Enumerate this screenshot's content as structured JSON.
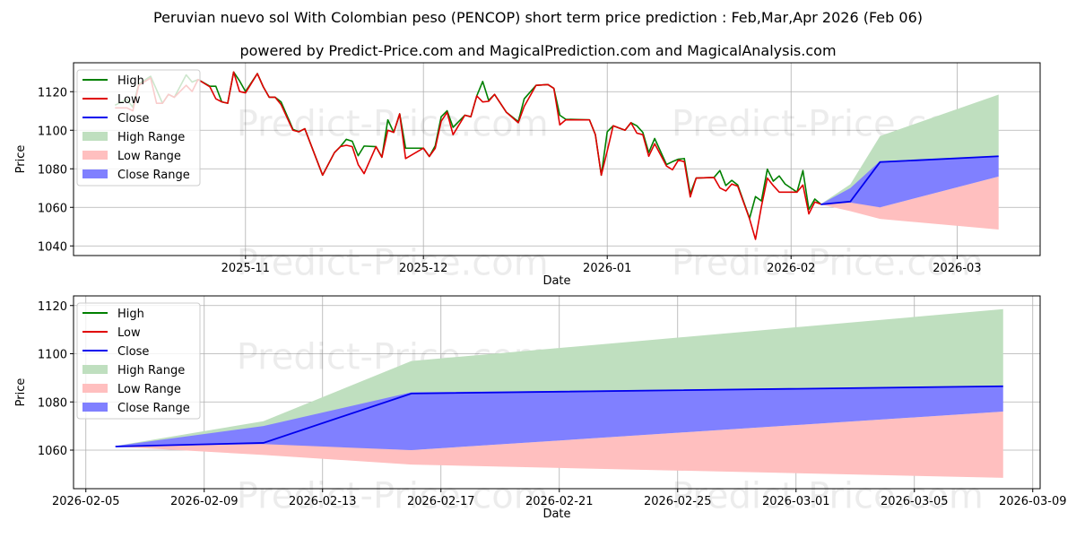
{
  "title": "Peruvian nuevo sol With Colombian peso (PENCOP) short term price prediction : Feb,Mar,Apr 2026 (Feb 06)",
  "subtitle": "powered by Predict-Price.com and MagicalPrediction.com and MagicalAnalysis.com",
  "watermark": "Predict-Price.com",
  "colors": {
    "high": "#008000",
    "low": "#e00000",
    "close": "#0000ee",
    "high_range": "#bfdfbf",
    "low_range": "#ffbfbf",
    "close_range": "#8080ff"
  },
  "chart_data": [
    {
      "type": "line",
      "xlabel": "Date",
      "ylabel": "Price",
      "xlim": [
        "2025-10-03",
        "2026-03-15"
      ],
      "ylim": [
        1035,
        1135
      ],
      "grid": true,
      "legend_position": "top-left",
      "legend": [
        "High",
        "Low",
        "Close",
        "High Range",
        "Low Range",
        "Close Range"
      ],
      "x_ticks": [
        {
          "date": "2025-11-01",
          "label": "2025-11"
        },
        {
          "date": "2025-12-01",
          "label": "2025-12"
        },
        {
          "date": "2026-01-01",
          "label": "2026-01"
        },
        {
          "date": "2026-02-01",
          "label": "2026-02"
        },
        {
          "date": "2026-03-01",
          "label": "2026-03"
        }
      ],
      "y_ticks": [
        1040,
        1060,
        1080,
        1100,
        1120
      ],
      "history": {
        "dates": [
          "2025-10-10",
          "2025-10-12",
          "2025-10-13",
          "2025-10-14",
          "2025-10-16",
          "2025-10-17",
          "2025-10-18",
          "2025-10-19",
          "2025-10-20",
          "2025-10-22",
          "2025-10-23",
          "2025-10-24",
          "2025-10-26",
          "2025-10-27",
          "2025-10-28",
          "2025-10-29",
          "2025-10-30",
          "2025-10-31",
          "2025-11-01",
          "2025-11-03",
          "2025-11-04",
          "2025-11-05",
          "2025-11-06",
          "2025-11-07",
          "2025-11-09",
          "2025-11-10",
          "2025-11-11",
          "2025-11-14",
          "2025-11-16",
          "2025-11-17",
          "2025-11-18",
          "2025-11-19",
          "2025-11-20",
          "2025-11-21",
          "2025-11-23",
          "2025-11-24",
          "2025-11-25",
          "2025-11-26",
          "2025-11-27",
          "2025-11-28",
          "2025-12-01",
          "2025-12-02",
          "2025-12-03",
          "2025-12-04",
          "2025-12-05",
          "2025-12-06",
          "2025-12-08",
          "2025-12-09",
          "2025-12-10",
          "2025-12-11",
          "2025-12-12",
          "2025-12-13",
          "2025-12-15",
          "2025-12-17",
          "2025-12-18",
          "2025-12-20",
          "2025-12-22",
          "2025-12-23",
          "2025-12-24",
          "2025-12-25",
          "2025-12-29",
          "2025-12-30",
          "2025-12-31",
          "2026-01-01",
          "2026-01-02",
          "2026-01-04",
          "2026-01-05",
          "2026-01-06",
          "2026-01-07",
          "2026-01-08",
          "2026-01-09",
          "2026-01-11",
          "2026-01-12",
          "2026-01-13",
          "2026-01-14",
          "2026-01-15",
          "2026-01-16",
          "2026-01-19",
          "2026-01-20",
          "2026-01-21",
          "2026-01-22",
          "2026-01-23",
          "2026-01-25",
          "2026-01-26",
          "2026-01-27",
          "2026-01-28",
          "2026-01-29",
          "2026-01-30",
          "2026-01-31",
          "2026-02-02",
          "2026-02-03",
          "2026-02-04",
          "2026-02-05",
          "2026-02-06"
        ],
        "high": [
          1113,
          1116,
          1112,
          1124,
          1128,
          1121,
          1114,
          1118.6,
          1117.1,
          1128.7,
          1125,
          1126.3,
          1122.8,
          1122.8,
          1114.7,
          1114,
          1130.2,
          1125.6,
          1120.1,
          1129.4,
          1122.5,
          1117.1,
          1117.1,
          1114.7,
          1100.5,
          1099.2,
          1100.8,
          1076.7,
          1088.4,
          1091.5,
          1095.3,
          1094.3,
          1086.8,
          1091.8,
          1091.5,
          1086,
          1105.4,
          1098.9,
          1108.5,
          1090.7,
          1090.7,
          1086.4,
          1092,
          1107,
          1110.1,
          1101.5,
          1107.8,
          1107,
          1117.8,
          1125.3,
          1115.5,
          1118.6,
          1109.3,
          1104.5,
          1116.3,
          1123.3,
          1123.7,
          1121.7,
          1107.8,
          1105.7,
          1105.4,
          1097.7,
          1076.7,
          1099.2,
          1102.3,
          1100,
          1103.9,
          1102.3,
          1098.9,
          1088.4,
          1095.7,
          1082.2,
          1083.7,
          1085,
          1085.3,
          1067,
          1075.2,
          1075.5,
          1079.1,
          1071.3,
          1074,
          1071.6,
          1054.3,
          1065.6,
          1063.3,
          1079.8,
          1073.6,
          1076.3,
          1072.1,
          1067.9,
          1079.1,
          1058.9,
          1064.3,
          1061.7
        ],
        "low": [
          1111.6,
          1111.6,
          1110.1,
          1123.3,
          1127.1,
          1114,
          1114,
          1118.6,
          1117.1,
          1123.3,
          1120.1,
          1126.3,
          1122.5,
          1116.3,
          1114.7,
          1114,
          1130.2,
          1120.1,
          1119.4,
          1129.4,
          1122.5,
          1117.1,
          1117.1,
          1113.3,
          1100,
          1099.2,
          1100.8,
          1076.7,
          1088.4,
          1091.5,
          1092.2,
          1091.5,
          1082.2,
          1077.5,
          1091.5,
          1086,
          1100,
          1098.9,
          1108.5,
          1085.3,
          1090.7,
          1086.4,
          1090.7,
          1104.7,
          1109.3,
          1097.7,
          1107.8,
          1107,
          1117.8,
          1114.7,
          1115,
          1118.6,
          1109.3,
          1103.9,
          1112.4,
          1123.3,
          1123.7,
          1121.7,
          1102.8,
          1105.4,
          1105.4,
          1097.7,
          1076.7,
          1089.2,
          1102.3,
          1100,
          1103.9,
          1098.5,
          1097.7,
          1086.5,
          1093,
          1081.4,
          1079.5,
          1084.5,
          1083.7,
          1065.4,
          1075.2,
          1075.5,
          1070.1,
          1068.5,
          1072.1,
          1071,
          1054,
          1043.4,
          1060.5,
          1075.2,
          1071.3,
          1067.9,
          1067.9,
          1067.9,
          1071.6,
          1056.6,
          1062.8,
          1061.7
        ]
      }
    },
    {
      "type": "line",
      "xlabel": "Date",
      "ylabel": "Price",
      "xlim": [
        "2026-02-04T14:00",
        "2026-03-09T06:00"
      ],
      "ylim": [
        1044,
        1124
      ],
      "grid": true,
      "legend_position": "top-left",
      "legend": [
        "High",
        "Low",
        "Close",
        "High Range",
        "Low Range",
        "Close Range"
      ],
      "x_ticks": [
        {
          "date": "2026-02-05",
          "label": "2026-02-05"
        },
        {
          "date": "2026-02-09",
          "label": "2026-02-09"
        },
        {
          "date": "2026-02-13",
          "label": "2026-02-13"
        },
        {
          "date": "2026-02-17",
          "label": "2026-02-17"
        },
        {
          "date": "2026-02-21",
          "label": "2026-02-21"
        },
        {
          "date": "2026-02-25",
          "label": "2026-02-25"
        },
        {
          "date": "2026-03-01",
          "label": "2026-03-01"
        },
        {
          "date": "2026-03-05",
          "label": "2026-03-05"
        },
        {
          "date": "2026-03-09",
          "label": "2026-03-09"
        }
      ],
      "y_ticks": [
        1060,
        1080,
        1100,
        1120
      ]
    }
  ],
  "forecast": {
    "dates": [
      "2026-02-06",
      "2026-02-11",
      "2026-02-16",
      "2026-03-08"
    ],
    "close": [
      1061.5,
      1063,
      1083.5,
      1086.5
    ],
    "high_range": {
      "lower": [
        1061.5,
        1063,
        1083.5,
        1086.5
      ],
      "upper": [
        1061.7,
        1072,
        1097,
        1118.5
      ]
    },
    "low_range": {
      "lower": [
        1061.5,
        1058,
        1054,
        1048.5
      ],
      "upper": [
        1061.7,
        1063,
        1060,
        1076
      ]
    },
    "close_range": {
      "lower": [
        1061.5,
        1062.5,
        1060,
        1076
      ],
      "upper": [
        1061.7,
        1070,
        1084,
        1086.5
      ]
    }
  }
}
